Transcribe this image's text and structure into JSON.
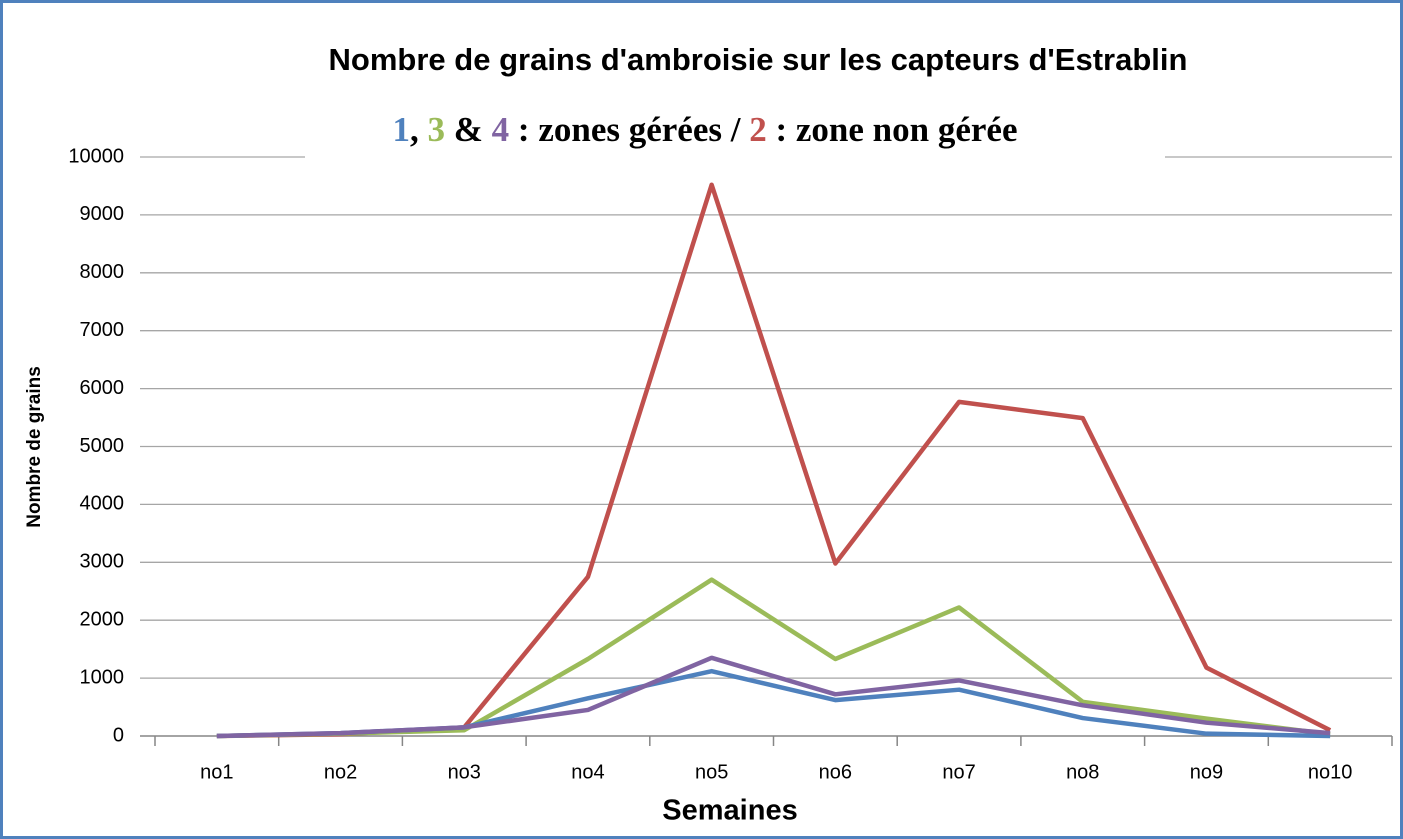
{
  "chart_data": {
    "type": "line",
    "title": "Nombre de grains d'ambroisie sur les capteurs d'Estrablin",
    "subtitle_separators": [
      ", ",
      " & ",
      " : zones gérées / ",
      " : zone non gérée"
    ],
    "xlabel": "Semaines",
    "ylabel": "Nombre de grains",
    "categories": [
      "no1",
      "no2",
      "no3",
      "no4",
      "no5",
      "no6",
      "no7",
      "no8",
      "no9",
      "no10"
    ],
    "series": [
      {
        "name": "1",
        "color": "#4f81bd",
        "values": [
          0,
          50,
          150,
          650,
          1120,
          620,
          800,
          310,
          40,
          0
        ]
      },
      {
        "name": "2",
        "color": "#c0504d",
        "values": [
          0,
          30,
          150,
          2750,
          9520,
          2980,
          5770,
          5490,
          1180,
          100
        ]
      },
      {
        "name": "3",
        "color": "#9bbb59",
        "values": [
          0,
          40,
          100,
          1330,
          2700,
          1330,
          2220,
          590,
          300,
          30
        ]
      },
      {
        "name": "4",
        "color": "#8064a2",
        "values": [
          0,
          50,
          150,
          450,
          1350,
          720,
          960,
          530,
          230,
          50
        ]
      }
    ],
    "ylim": [
      0,
      10000
    ],
    "yticks": [
      0,
      1000,
      2000,
      3000,
      4000,
      5000,
      6000,
      7000,
      8000,
      9000,
      10000
    ],
    "grid": true
  }
}
